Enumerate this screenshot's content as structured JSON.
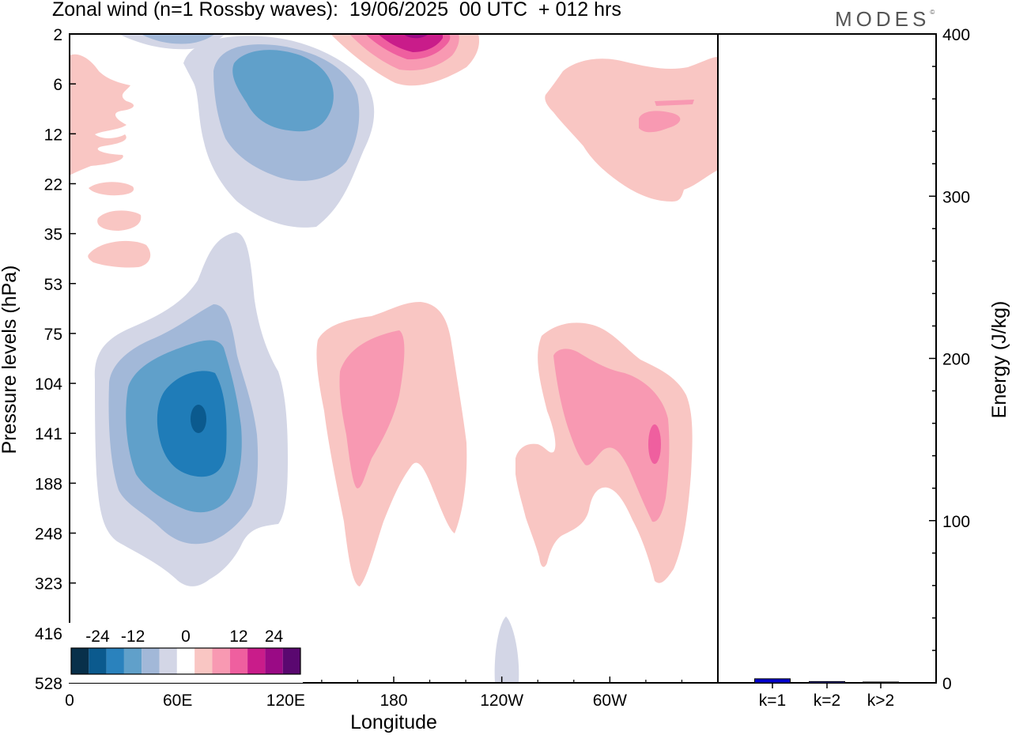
{
  "title": "Zonal wind (n=1 Rossby waves):  19/06/2025  00 UTC  + 012 hrs",
  "brand": "MODES",
  "brand_mark": "©",
  "chart_data": [
    {
      "type": "heatmap",
      "title": "Zonal wind (n=1 Rossby waves):  19/06/2025  00 UTC  + 012 hrs",
      "xlabel": "Longitude",
      "ylabel": "Pressure levels (hPa)",
      "x_ticks": [
        "0",
        "60E",
        "120E",
        "180",
        "120W",
        "60W"
      ],
      "x_tick_values": [
        0,
        60,
        120,
        180,
        240,
        300
      ],
      "xlim": [
        0,
        360
      ],
      "y_ticks": [
        "2",
        "6",
        "12",
        "22",
        "35",
        "53",
        "75",
        "104",
        "141",
        "188",
        "248",
        "323",
        "416",
        "528"
      ],
      "y_scale": "model levels (top 2 hPa, bottom 528 hPa)",
      "colorbar": {
        "tick_labels": [
          "-24",
          "-12",
          "0",
          "12",
          "24"
        ],
        "colors": [
          "#08304a",
          "#0b5a8e",
          "#2a82bd",
          "#60a0ca",
          "#a2b8d8",
          "#d3d6e6",
          "#ffffff",
          "#f9c6c3",
          "#f899b2",
          "#ef5f9f",
          "#c91c8a",
          "#9a0a85",
          "#5a0870"
        ],
        "placement": "bottom-left inset"
      },
      "features": [
        {
          "sign": "negative",
          "lon": 72,
          "level_hpa": 130,
          "min_value": -24,
          "extent_lon": [
            15,
            120
          ],
          "extent_hpa": [
            35,
            330
          ]
        },
        {
          "sign": "negative",
          "lon": 100,
          "level_hpa": 8,
          "min_value": -16,
          "extent_lon": [
            40,
            160
          ],
          "extent_hpa": [
            2,
            35
          ]
        },
        {
          "sign": "positive",
          "lon": 191,
          "level_hpa": 2,
          "max_value": 24,
          "extent_lon": [
            145,
            230
          ],
          "extent_hpa": [
            2,
            6
          ]
        },
        {
          "sign": "positive",
          "lon": 163,
          "level_hpa": 120,
          "max_value": 12,
          "extent_lon": [
            140,
            220
          ],
          "extent_hpa": [
            60,
            320
          ]
        },
        {
          "sign": "positive",
          "lon": 325,
          "level_hpa": 141,
          "max_value": 16,
          "extent_lon": [
            248,
            345
          ],
          "extent_hpa": [
            65,
            320
          ]
        },
        {
          "sign": "positive",
          "lon": 330,
          "level_hpa": 10,
          "max_value": 12,
          "extent_lon": [
            265,
            360
          ],
          "extent_hpa": [
            4,
            25
          ]
        },
        {
          "sign": "positive",
          "lon": 10,
          "level_hpa": 15,
          "max_value": 6,
          "extent_lon": [
            0,
            45
          ],
          "extent_hpa": [
            4,
            45
          ]
        }
      ]
    },
    {
      "type": "bar",
      "ylabel": "Energy (J/kg)",
      "ylim": [
        0,
        400
      ],
      "y_ticks": [
        "0",
        "100",
        "200",
        "300",
        "400"
      ],
      "categories": [
        "k=1",
        "k=2",
        "k>2"
      ],
      "values": [
        2.5,
        0.8,
        0.5
      ],
      "bar_color": "#0000cc"
    }
  ]
}
